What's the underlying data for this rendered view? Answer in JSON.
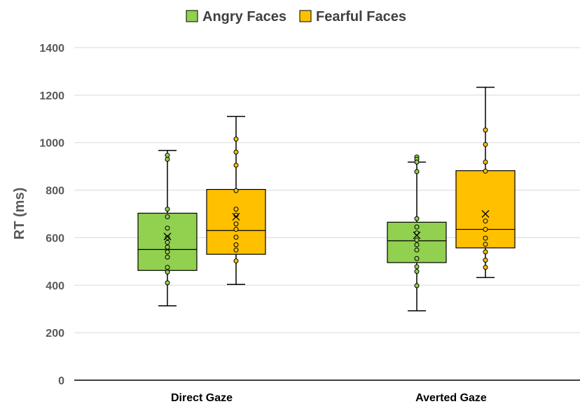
{
  "chart_data": {
    "type": "box",
    "title": "",
    "xlabel": "",
    "ylabel": "RT (ms)",
    "ylim": [
      0,
      1400
    ],
    "yticks": [
      0,
      200,
      400,
      600,
      800,
      1000,
      1200,
      1400
    ],
    "grid": true,
    "legend_position": "top-center",
    "categories": [
      "Direct Gaze",
      "Averted Gaze"
    ],
    "series": [
      {
        "name": "Angry Faces",
        "color": "#92d050",
        "boxes": [
          {
            "whisker_low": 313,
            "q1": 462,
            "median": 550,
            "q3": 703,
            "whisker_high": 967,
            "mean": 605,
            "points": [
              947,
              930,
              720,
              688,
              640,
              600,
              580,
              560,
              540,
              518,
              475,
              455,
              410
            ]
          },
          {
            "whisker_low": 292,
            "q1": 495,
            "median": 587,
            "q3": 665,
            "whisker_high": 918,
            "mean": 610,
            "points": [
              940,
              930,
              918,
              878,
              680,
              645,
              620,
              590,
              570,
              548,
              512,
              478,
              458,
              398
            ]
          }
        ]
      },
      {
        "name": "Fearful Faces",
        "color": "#ffc000",
        "boxes": [
          {
            "whisker_low": 403,
            "q1": 530,
            "median": 630,
            "q3": 803,
            "whisker_high": 1110,
            "mean": 688,
            "points": [
              1015,
              960,
              905,
              798,
              720,
              695,
              658,
              635,
              602,
              570,
              548,
              502
            ]
          },
          {
            "whisker_low": 432,
            "q1": 557,
            "median": 635,
            "q3": 882,
            "whisker_high": 1233,
            "mean": 700,
            "points": [
              1053,
              992,
              918,
              880,
              670,
              635,
              598,
              572,
              540,
              505,
              475
            ]
          }
        ]
      }
    ]
  }
}
